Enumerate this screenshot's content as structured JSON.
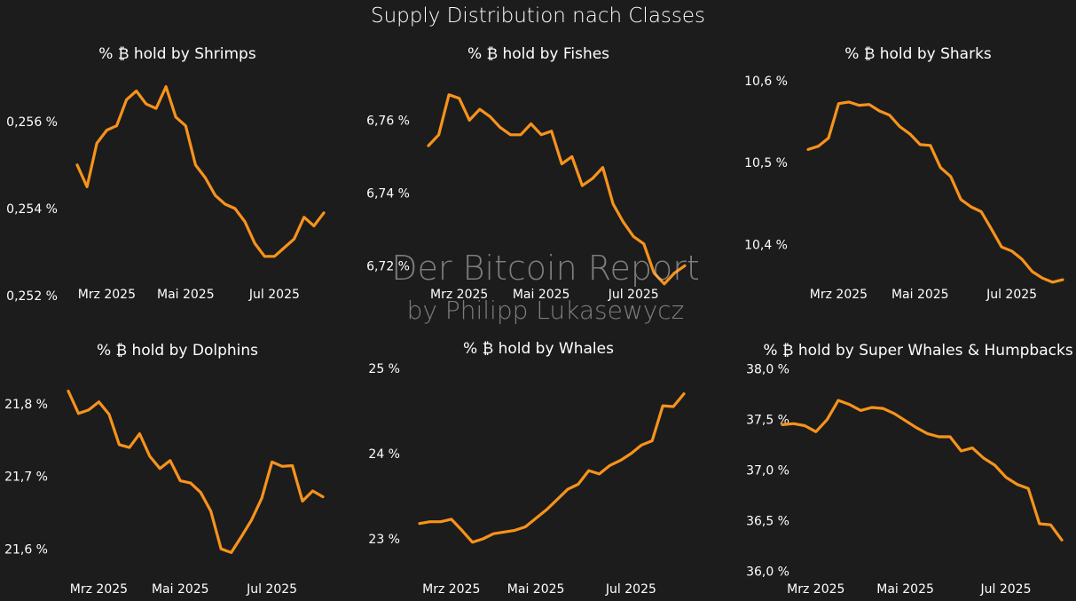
{
  "title": "Supply Distribution nach Classes",
  "watermark": {
    "line1": "Der Bitcoin Report",
    "line2": "by Philipp Lukasewycz"
  },
  "colors": {
    "background": "#1c1c1c",
    "line": "#f7931a",
    "text": "#ffffff"
  },
  "chart_data": [
    {
      "type": "line",
      "title": "% ₿ hold by Shrimps",
      "x_tick_labels": [
        "Mrz 2025",
        "Mai 2025",
        "Jul 2025"
      ],
      "x_tick_index": [
        3,
        11,
        20
      ],
      "y_tick_labels": [
        "0,252 %",
        "0,254 %",
        "0,256 %"
      ],
      "y_ticks": [
        0.252,
        0.254,
        0.256
      ],
      "ylim": [
        0.2521,
        0.2572
      ],
      "grid": false,
      "series": [
        {
          "values": [
            0.255,
            0.2545,
            0.2555,
            0.2558,
            0.2559,
            0.2565,
            0.2567,
            0.2564,
            0.2563,
            0.2568,
            0.2561,
            0.2559,
            0.255,
            0.2547,
            0.2543,
            0.2541,
            0.254,
            0.2537,
            0.2532,
            0.2529,
            0.2529,
            0.2531,
            0.2533,
            0.2538,
            0.2536,
            0.2539
          ]
        }
      ]
    },
    {
      "type": "line",
      "title": "% ₿ hold by Fishes",
      "x_tick_labels": [
        "Mrz 2025",
        "Mai 2025",
        "Jul 2025"
      ],
      "x_tick_index": [
        3,
        11,
        20
      ],
      "y_tick_labels": [
        "6,72 %",
        "6,74 %",
        "6,76 %"
      ],
      "y_ticks": [
        6.72,
        6.74,
        6.76
      ],
      "ylim": [
        6.713,
        6.774
      ],
      "grid": false,
      "series": [
        {
          "values": [
            6.753,
            6.756,
            6.767,
            6.766,
            6.76,
            6.763,
            6.761,
            6.758,
            6.756,
            6.756,
            6.759,
            6.756,
            6.757,
            6.748,
            6.75,
            6.742,
            6.744,
            6.747,
            6.737,
            6.732,
            6.728,
            6.726,
            6.718,
            6.715,
            6.718,
            6.72
          ]
        }
      ]
    },
    {
      "type": "line",
      "title": "% ₿ hold by Sharks",
      "x_tick_labels": [
        "Mrz 2025",
        "Mai 2025",
        "Jul 2025"
      ],
      "x_tick_index": [
        3,
        11,
        20
      ],
      "y_tick_labels": [
        "10,4 %",
        "10,5 %",
        "10,6 %"
      ],
      "y_ticks": [
        10.4,
        10.5,
        10.6
      ],
      "ylim": [
        10.343,
        10.614
      ],
      "grid": false,
      "series": [
        {
          "values": [
            10.516,
            10.52,
            10.53,
            10.572,
            10.574,
            10.57,
            10.571,
            10.563,
            10.558,
            10.544,
            10.535,
            10.522,
            10.521,
            10.494,
            10.483,
            10.455,
            10.446,
            10.44,
            10.419,
            10.397,
            10.392,
            10.382,
            10.367,
            10.359,
            10.354,
            10.357
          ]
        }
      ]
    },
    {
      "type": "line",
      "title": "% ₿ hold by Dolphins",
      "x_tick_labels": [
        "Mrz 2025",
        "Mai 2025",
        "Jul 2025"
      ],
      "x_tick_index": [
        3,
        11,
        20
      ],
      "y_tick_labels": [
        "21,6 %",
        "21,7 %",
        "21,8 %"
      ],
      "y_ticks": [
        21.6,
        21.7,
        21.8
      ],
      "ylim": [
        21.555,
        21.837
      ],
      "grid": false,
      "series": [
        {
          "values": [
            21.818,
            21.787,
            21.792,
            21.803,
            21.786,
            21.744,
            21.74,
            21.759,
            21.728,
            21.711,
            21.722,
            21.694,
            21.691,
            21.678,
            21.652,
            21.6,
            21.595,
            21.617,
            21.64,
            21.67,
            21.72,
            21.714,
            21.715,
            21.666,
            21.68,
            21.672
          ]
        }
      ]
    },
    {
      "type": "line",
      "title": "% ₿ hold by Whales",
      "x_tick_labels": [
        "Mrz 2025",
        "Mai 2025",
        "Jul 2025"
      ],
      "x_tick_index": [
        3,
        11,
        20
      ],
      "y_tick_labels": [
        "23 %",
        "24 %",
        "25 %"
      ],
      "y_ticks": [
        23,
        24,
        25
      ],
      "ylim": [
        22.5,
        25.05
      ],
      "grid": false,
      "series": [
        {
          "values": [
            23.18,
            23.2,
            23.2,
            23.23,
            23.1,
            22.96,
            23.0,
            23.06,
            23.08,
            23.1,
            23.14,
            23.24,
            23.34,
            23.46,
            23.58,
            23.64,
            23.8,
            23.76,
            23.86,
            23.92,
            24.0,
            24.1,
            24.15,
            24.56,
            24.55,
            24.7
          ]
        }
      ]
    },
    {
      "type": "line",
      "title": "% ₿ hold by Super Whales & Humpbacks",
      "x_tick_labels": [
        "Mrz 2025",
        "Mai 2025",
        "Jul 2025"
      ],
      "x_tick_index": [
        3,
        11,
        20
      ],
      "y_tick_labels": [
        "36,0 %",
        "36,5 %",
        "37,0 %",
        "37,5 %",
        "38,0 %"
      ],
      "y_ticks": [
        36.0,
        36.5,
        37.0,
        37.5,
        38.0
      ],
      "ylim": [
        35.9,
        38.05
      ],
      "grid": false,
      "series": [
        {
          "values": [
            37.45,
            37.46,
            37.44,
            37.38,
            37.5,
            37.69,
            37.65,
            37.59,
            37.62,
            37.61,
            37.56,
            37.49,
            37.42,
            37.36,
            37.33,
            37.33,
            37.19,
            37.22,
            37.12,
            37.05,
            36.93,
            36.86,
            36.82,
            36.47,
            36.46,
            36.31
          ]
        }
      ]
    }
  ]
}
